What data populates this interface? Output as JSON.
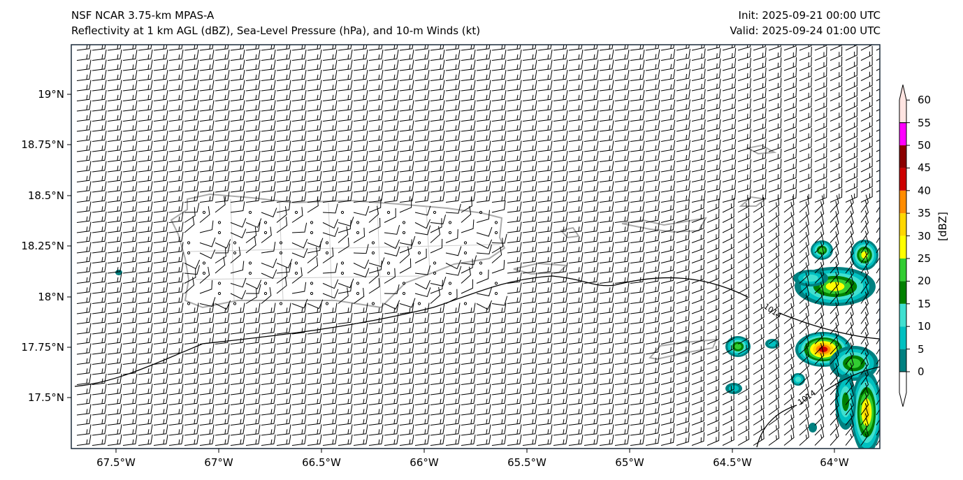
{
  "header": {
    "model": "NSF NCAR 3.75-km MPAS-A",
    "fields": "Reflectivity at 1 km AGL (dBZ), Sea-Level Pressure (hPa), and 10-m Winds (kt)",
    "init": "Init: 2025-09-21 00:00 UTC",
    "valid": "Valid: 2025-09-24 01:00 UTC"
  },
  "axes": {
    "lon_ticks": [
      "67.5°W",
      "67°W",
      "66.5°W",
      "66°W",
      "65.5°W",
      "65°W",
      "64.5°W",
      "64°W"
    ],
    "lat_ticks": [
      "19°N",
      "18.75°N",
      "18.5°N",
      "18.25°N",
      "18°N",
      "17.75°N",
      "17.5°N"
    ]
  },
  "contours": {
    "label_1": "1014",
    "label_2": "1014"
  },
  "colorbar": {
    "label": "[dBZ]",
    "ticks": [
      "0",
      "5",
      "10",
      "15",
      "20",
      "25",
      "30",
      "35",
      "40",
      "45",
      "50",
      "55",
      "60"
    ],
    "colors": [
      "#008080",
      "#00c0c0",
      "#40e0d0",
      "#008000",
      "#32cd32",
      "#ffff00",
      "#ffd700",
      "#ff8c00",
      "#cc0000",
      "#8b0000",
      "#ff00ff",
      "#ffe4e1"
    ]
  }
}
